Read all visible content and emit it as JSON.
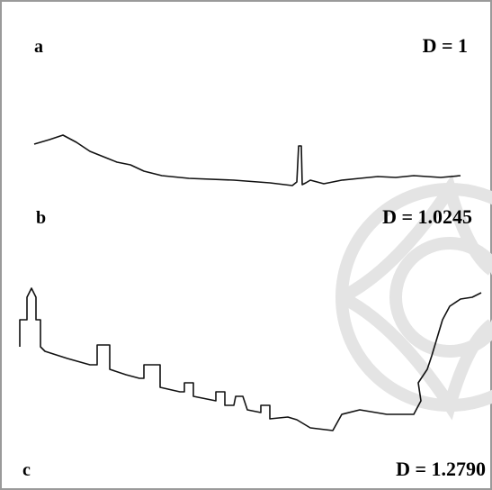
{
  "panels": [
    {
      "label": "a",
      "dimension": "D = 1"
    },
    {
      "label": "b",
      "dimension": "D = 1.0245"
    },
    {
      "label": "c",
      "dimension": "D = 1.2790"
    }
  ]
}
